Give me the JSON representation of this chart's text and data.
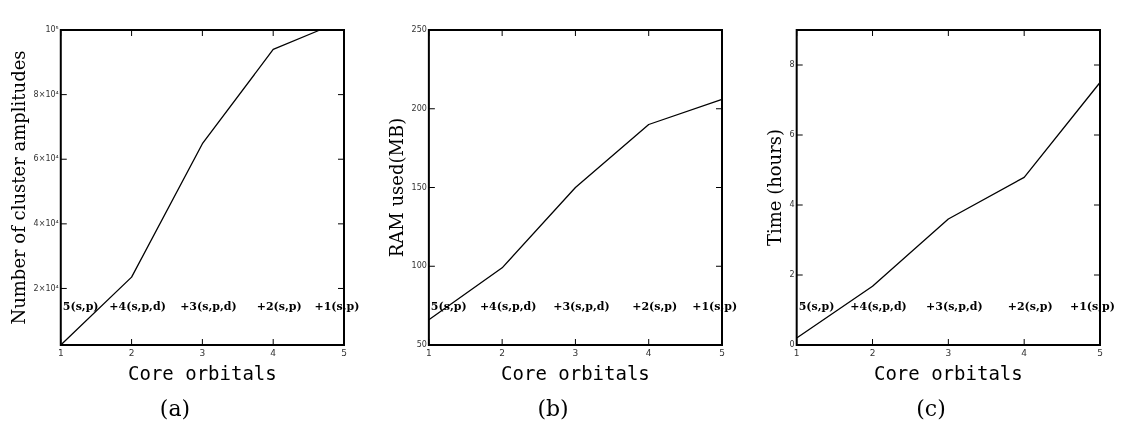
{
  "chart_data": [
    {
      "type": "line",
      "title": "(a)",
      "xlabel": "Core orbitals",
      "ylabel": "Number of cluster amplitudes",
      "x": [
        1,
        2,
        3,
        4,
        4.66
      ],
      "series": [
        {
          "color": "#000000",
          "values": [
            2500,
            23500,
            64800,
            94000,
            100000
          ]
        }
      ],
      "xlim": [
        1,
        5
      ],
      "xticks": [
        1,
        2,
        3,
        4,
        5
      ],
      "ylim": [
        2500,
        100000
      ],
      "yticks": [
        {
          "value": 20000,
          "label": "2×10⁴"
        },
        {
          "value": 40000,
          "label": "4×10⁴"
        },
        {
          "value": 60000,
          "label": "6×10⁴"
        },
        {
          "value": 80000,
          "label": "8×10⁴"
        },
        {
          "value": 100000,
          "label": "10⁵"
        }
      ],
      "grid": false,
      "legend": false,
      "marker": "none",
      "line_style": "solid",
      "annotations": [
        "5(s,p)",
        "+4(s,p,d)",
        "+3(s,p,d)",
        "+2(s,p)",
        "+1(s,p)"
      ]
    },
    {
      "type": "line",
      "title": "(b)",
      "xlabel": "Core orbitals",
      "ylabel": "RAM used(MB)",
      "x": [
        1,
        2,
        3,
        4,
        5
      ],
      "series": [
        {
          "color": "#000000",
          "values": [
            66,
            99,
            150,
            190,
            206
          ]
        }
      ],
      "xlim": [
        1,
        5
      ],
      "xticks": [
        1,
        2,
        3,
        4,
        5
      ],
      "ylim": [
        50,
        250
      ],
      "yticks": [
        50,
        100,
        150,
        200,
        250
      ],
      "grid": false,
      "legend": false,
      "marker": "none",
      "line_style": "solid",
      "annotations": [
        "5(s,p)",
        "+4(s,p,d)",
        "+3(s,p,d)",
        "+2(s,p)",
        "+1(s,p)"
      ]
    },
    {
      "type": "line",
      "title": "(c)",
      "xlabel": "Core orbitals",
      "ylabel": "Time (hours)",
      "x": [
        1,
        2,
        3,
        4,
        5
      ],
      "series": [
        {
          "color": "#000000",
          "values": [
            0.2,
            1.68,
            3.6,
            4.79,
            7.5
          ]
        }
      ],
      "xlim": [
        1,
        5
      ],
      "xticks": [
        1,
        2,
        3,
        4,
        5
      ],
      "ylim": [
        0,
        9
      ],
      "yticks": [
        0,
        2,
        4,
        6,
        8
      ],
      "grid": false,
      "legend": false,
      "marker": "none",
      "line_style": "solid",
      "annotations": [
        "5(s,p)",
        "+4(s,p,d)",
        "+3(s,p,d)",
        "+2(s,p)",
        "+1(s,p)"
      ]
    }
  ]
}
